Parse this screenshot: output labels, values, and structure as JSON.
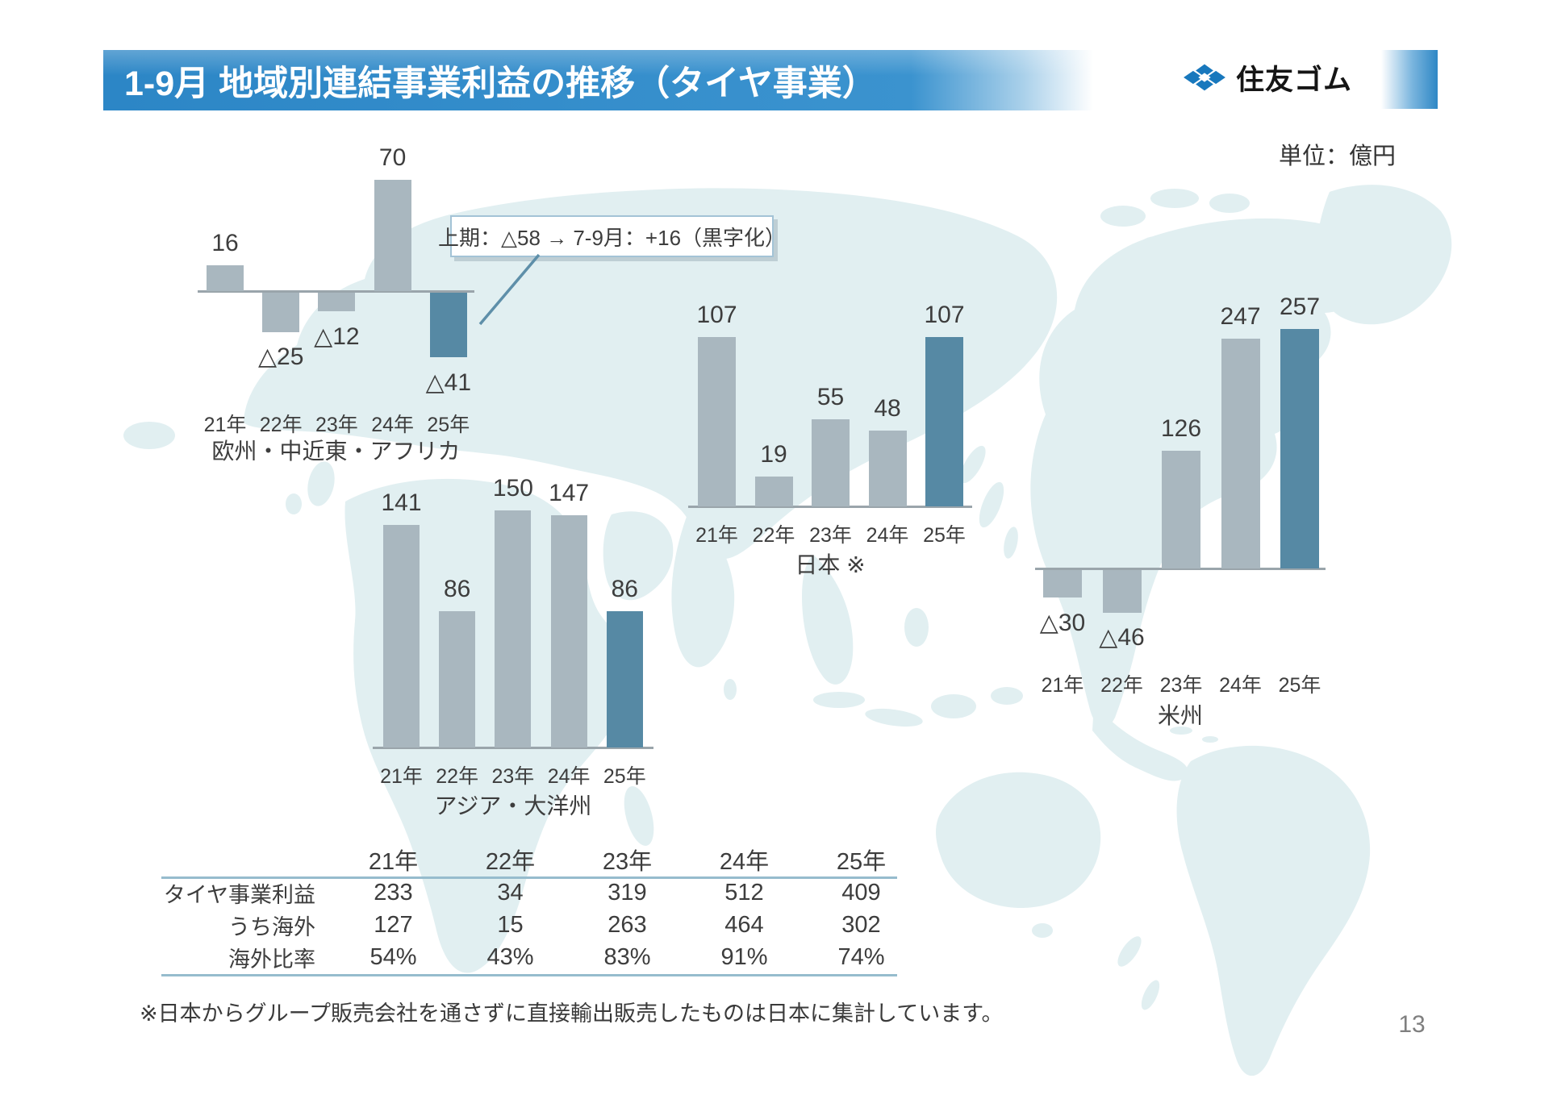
{
  "header": {
    "title": "1-9月 地域別連結事業利益の推移（タイヤ事業）",
    "logo_text": "住友ゴム",
    "unit_label": "単位：億円"
  },
  "annotation": {
    "text": "上期：△58 → 7-9月：+16（黒字化）"
  },
  "chart_data": [
    {
      "id": "emea",
      "type": "bar",
      "title": "欧州・中近東・アフリカ",
      "categories": [
        "21年",
        "22年",
        "23年",
        "24年",
        "25年"
      ],
      "values": [
        16,
        -25,
        -12,
        70,
        -41
      ],
      "unit": "億円",
      "highlight_index": 4,
      "negative_prefix": "△"
    },
    {
      "id": "japan",
      "type": "bar",
      "title": "日本 ※",
      "categories": [
        "21年",
        "22年",
        "23年",
        "24年",
        "25年"
      ],
      "values": [
        107,
        19,
        55,
        48,
        107
      ],
      "unit": "億円",
      "highlight_index": 4,
      "negative_prefix": "△"
    },
    {
      "id": "asia",
      "type": "bar",
      "title": "アジア・大洋州",
      "categories": [
        "21年",
        "22年",
        "23年",
        "24年",
        "25年"
      ],
      "values": [
        141,
        86,
        150,
        147,
        86
      ],
      "unit": "億円",
      "highlight_index": 4,
      "negative_prefix": "△"
    },
    {
      "id": "america",
      "type": "bar",
      "title": "米州",
      "categories": [
        "21年",
        "22年",
        "23年",
        "24年",
        "25年"
      ],
      "values": [
        -30,
        -46,
        126,
        247,
        257
      ],
      "unit": "億円",
      "highlight_index": 4,
      "negative_prefix": "△"
    }
  ],
  "table": {
    "columns": [
      "21年",
      "22年",
      "23年",
      "24年",
      "25年"
    ],
    "rows": [
      {
        "label": "タイヤ事業利益",
        "values": [
          "233",
          "34",
          "319",
          "512",
          "409"
        ]
      },
      {
        "label": "うち海外",
        "values": [
          "127",
          "15",
          "263",
          "464",
          "302"
        ]
      },
      {
        "label": "海外比率",
        "values": [
          "54%",
          "43%",
          "83%",
          "91%",
          "74%"
        ]
      }
    ]
  },
  "footnote": "※日本からグループ販売会社を通さずに直接輸出販売したものは日本に集計しています。",
  "page_number": "13",
  "colors": {
    "bar_gray": "#a9b7bf",
    "bar_highlight": "#5689a4",
    "header_blue": "#3b93cf",
    "map": "#e1eff1",
    "axis_line": "#9aa5ab",
    "table_rule": "#96bccd",
    "callout_line": "#5e8fa9"
  }
}
